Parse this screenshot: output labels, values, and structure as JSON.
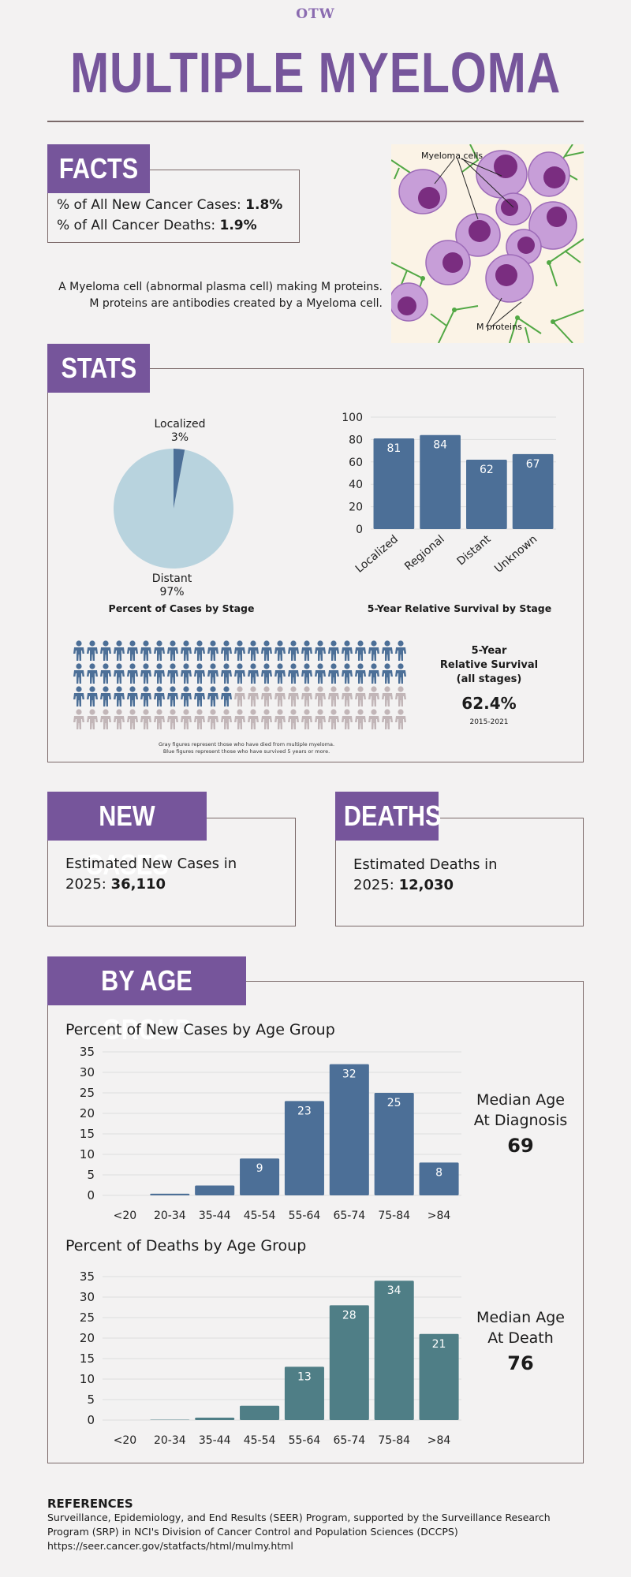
{
  "header": {
    "logo": "OTW",
    "title": "MULTIPLE MYELOMA"
  },
  "facts": {
    "tag": "FACTS",
    "new_cases_label": "% of All New Cancer Cases: ",
    "new_cases_value": "1.8%",
    "deaths_label": "% of All Cancer Deaths: ",
    "deaths_value": "1.9%",
    "caption_line1": "A Myeloma cell (abnormal plasma cell) making M proteins.",
    "caption_line2": "M proteins are antibodies created by a Myeloma cell.",
    "illustration": {
      "label_cells": "Myeloma cells",
      "label_proteins": "M proteins"
    }
  },
  "stats": {
    "tag": "STATS",
    "pie": {
      "caption": "Percent of Cases by Stage",
      "localized_label": "Localized",
      "localized_pct": "3%",
      "distant_label": "Distant",
      "distant_pct": "97%"
    },
    "survival_caption": "5-Year Relative Survival by Stage",
    "pictogram": {
      "title_line1": "5-Year",
      "title_line2": "Relative Survival",
      "title_line3": "(all stages)",
      "value": "62.4%",
      "years": "2015-2021",
      "note_line1": "Gray figures represent those who have died from multiple myeloma.",
      "note_line2": "Blue figures represent those who have survived 5 years or more.",
      "total": 100,
      "survived": 62
    }
  },
  "new_cases": {
    "tag": "NEW CASES",
    "line1": "Estimated New Cases in",
    "line2_prefix": "2025: ",
    "value": "36,110"
  },
  "deaths": {
    "tag": "DEATHS",
    "line1": "Estimated Deaths in",
    "line2_prefix": "2025: ",
    "value": "12,030"
  },
  "age": {
    "tag": "BY AGE GROUP",
    "cases_title": "Percent of New Cases by Age Group",
    "deaths_title": "Percent of Deaths by Age Group",
    "median_diag_line1": "Median Age",
    "median_diag_line2": "At Diagnosis",
    "median_diag_value": "69",
    "median_death_line1": "Median Age",
    "median_death_line2": "At Death",
    "median_death_value": "76"
  },
  "references": {
    "title": "REFERENCES",
    "line1": "Surveillance, Epidemiology, and End Results (SEER) Program, supported by the Surveillance Research",
    "line2": "Program (SRP) in NCI's Division of Cancer Control and Population Sciences (DCCPS)",
    "line3": "https://seer.cancer.gov/statfacts/html/mulmy.html"
  },
  "colors": {
    "purple": "#76559b",
    "bar_blue": "#4c6f97",
    "bar_teal": "#4f7e86",
    "pie_light": "#b8d3de",
    "person_gray": "#c2b6b8"
  },
  "chart_data": [
    {
      "type": "pie",
      "title": "Percent of Cases by Stage",
      "categories": [
        "Localized",
        "Distant"
      ],
      "values": [
        3,
        97
      ]
    },
    {
      "type": "bar",
      "title": "5-Year Relative Survival by Stage",
      "categories": [
        "Localized",
        "Regional",
        "Distant",
        "Unknown"
      ],
      "values": [
        81,
        84,
        62,
        67
      ],
      "value_labels": [
        "81",
        "84",
        "62",
        "67"
      ],
      "ylim": [
        0,
        100
      ],
      "yticks": [
        "0",
        "20",
        "40",
        "60",
        "80",
        "100"
      ]
    },
    {
      "type": "bar",
      "title": "Percent of New Cases by Age Group",
      "categories": [
        "<20",
        "20-34",
        "35-44",
        "45-54",
        "55-64",
        "65-74",
        "75-84",
        ">84"
      ],
      "values": [
        0,
        0.4,
        2.4,
        9,
        23,
        32,
        25,
        8
      ],
      "value_labels": [
        "",
        "",
        "",
        "9",
        "23",
        "32",
        "25",
        "8"
      ],
      "ylim": [
        0,
        35
      ],
      "yticks": [
        "0",
        "5",
        "10",
        "15",
        "20",
        "25",
        "30",
        "35"
      ]
    },
    {
      "type": "bar",
      "title": "Percent of Deaths by Age Group",
      "categories": [
        "<20",
        "20-34",
        "35-44",
        "45-54",
        "55-64",
        "65-74",
        "75-84",
        ">84"
      ],
      "values": [
        0,
        0.1,
        0.6,
        3.5,
        13,
        28,
        34,
        21
      ],
      "value_labels": [
        "",
        "",
        "",
        "",
        "13",
        "28",
        "34",
        "21"
      ],
      "ylim": [
        0,
        35
      ],
      "yticks": [
        "0",
        "5",
        "10",
        "15",
        "20",
        "25",
        "30",
        "35"
      ]
    }
  ]
}
